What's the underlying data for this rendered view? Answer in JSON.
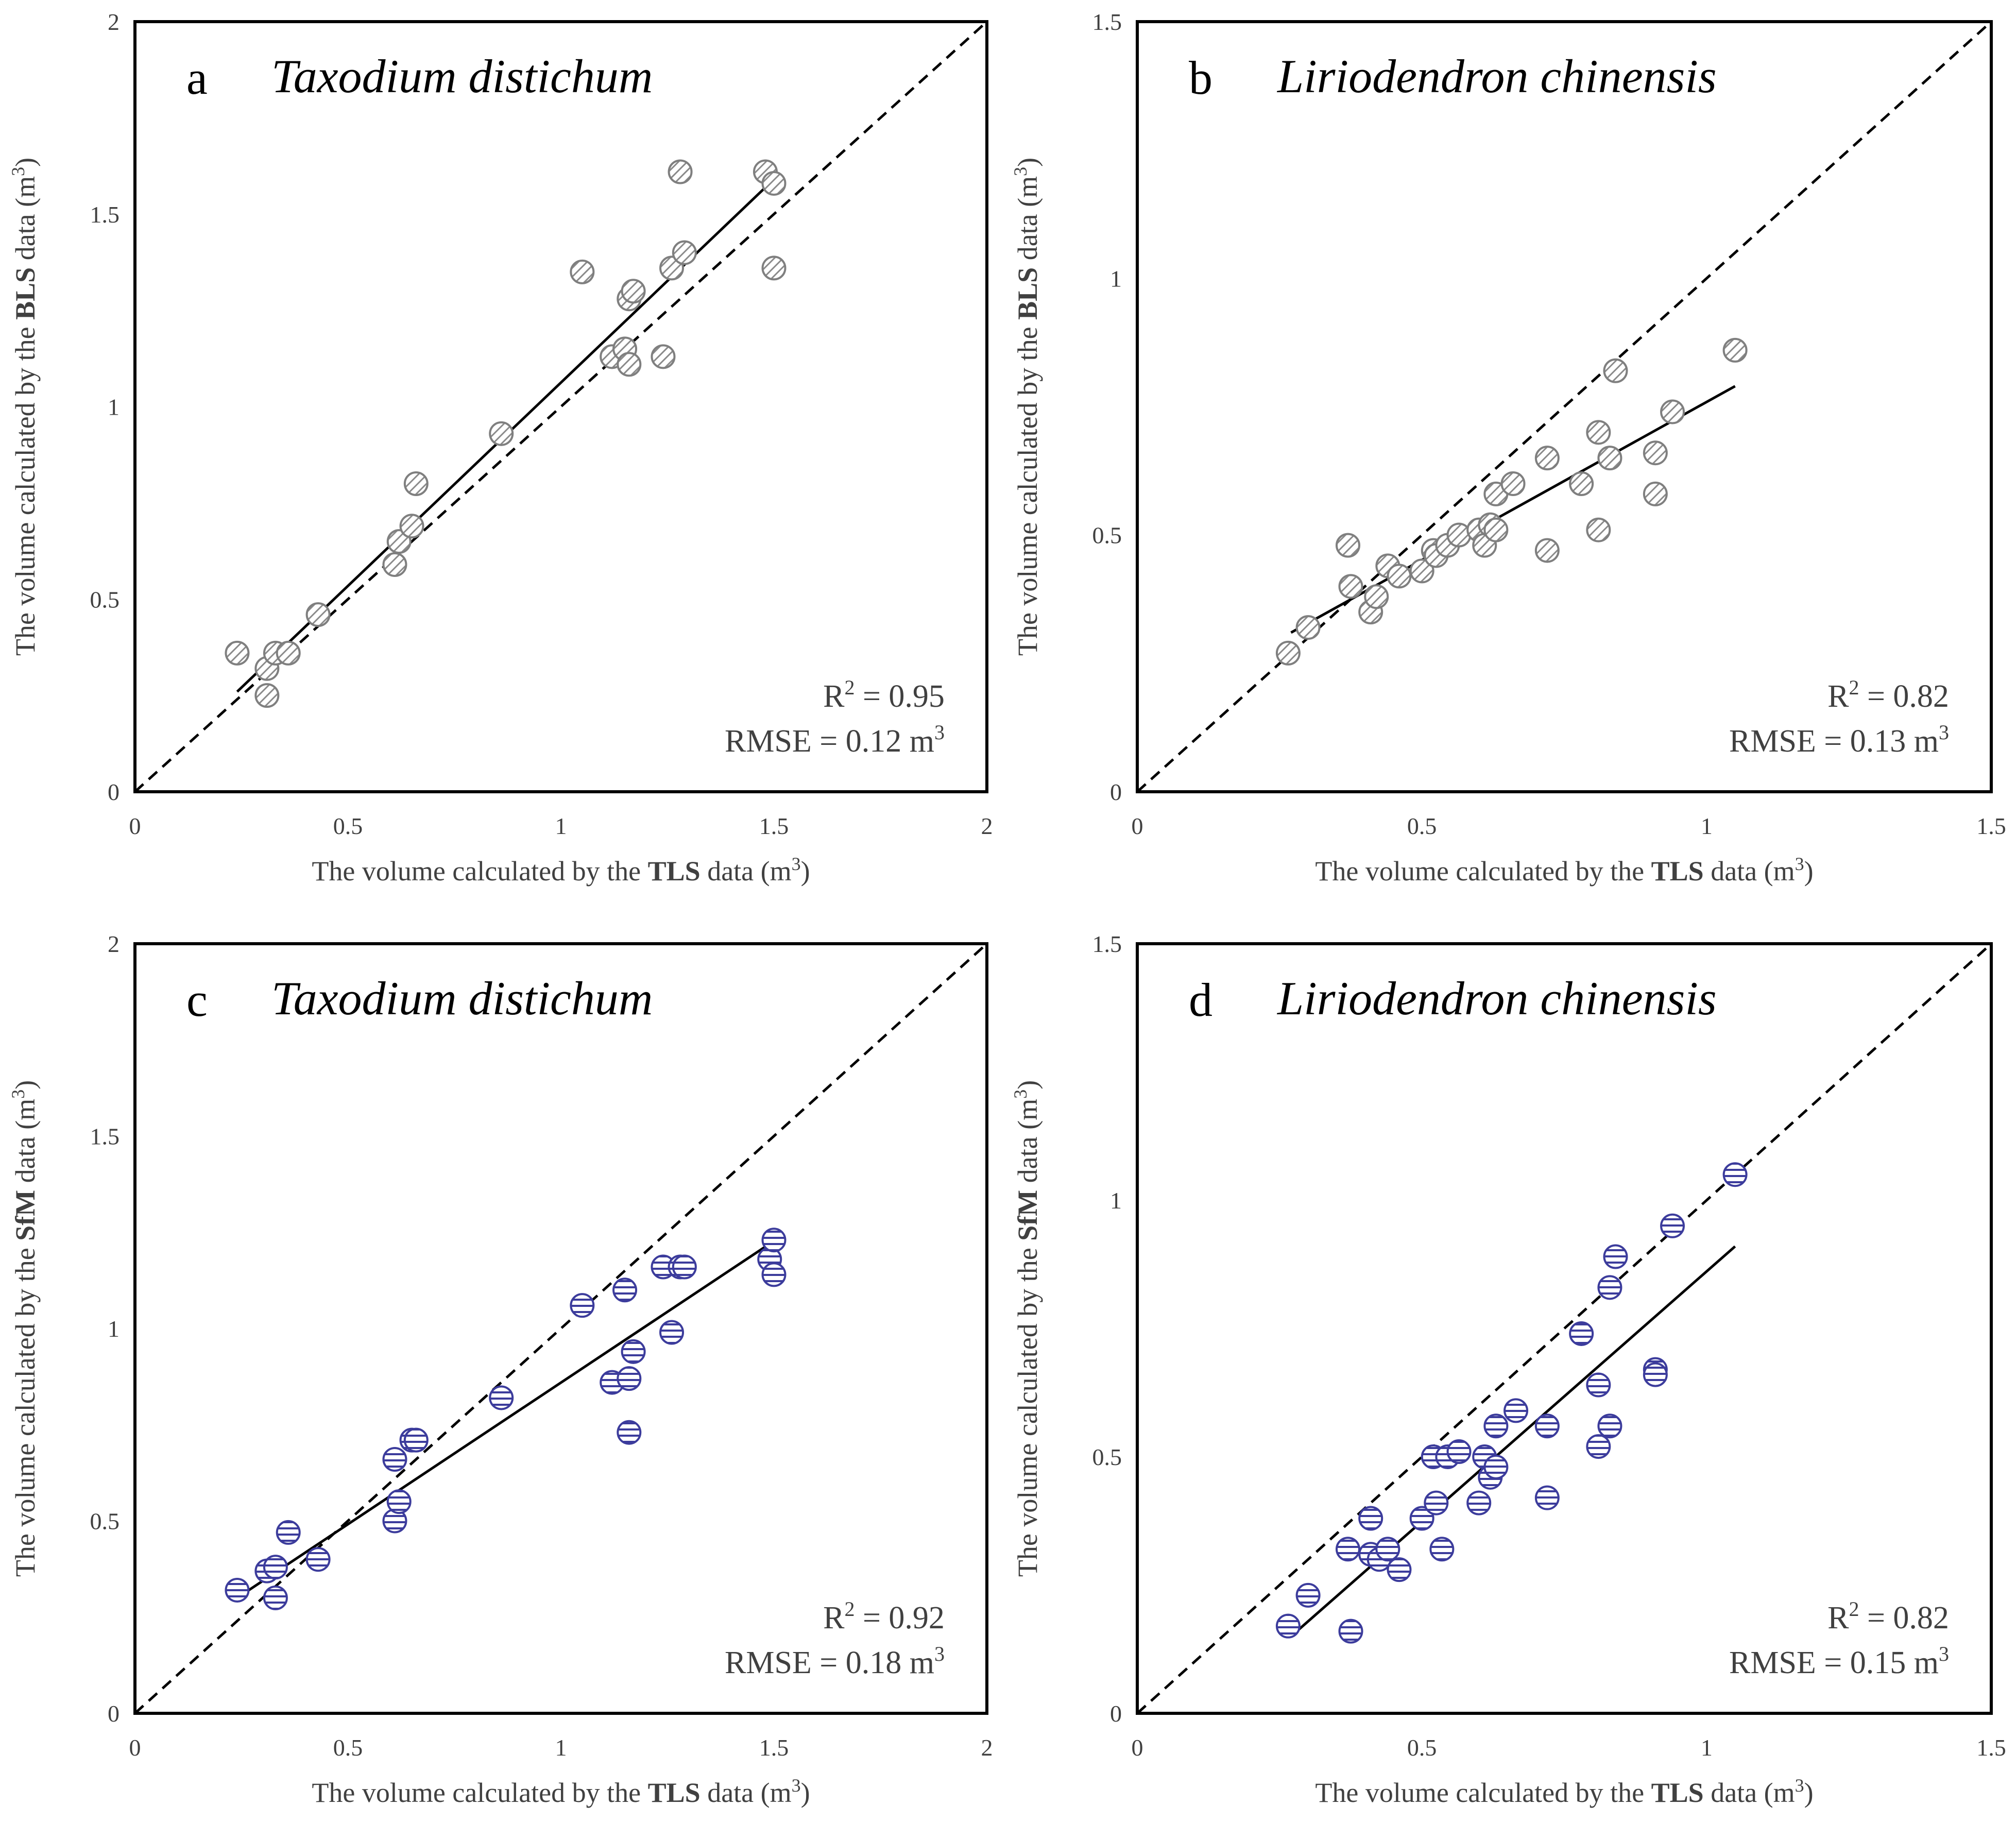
{
  "chart_data": [
    {
      "type": "scatter",
      "panel": "a",
      "species": "Taxodium distichum",
      "xlabel_pre": "The volume calculated by the ",
      "xlabel_bold": "TLS",
      "xlabel_post": " data (m",
      "xlabel_sup": "3",
      "xlabel_end": ")",
      "ylabel_pre": "The volume calculated by the ",
      "ylabel_bold": "BLS",
      "ylabel_post": " data (m",
      "ylabel_sup": "3",
      "ylabel_end": ")",
      "xlim": [
        0,
        2
      ],
      "ylim": [
        0,
        2
      ],
      "xticks": [
        "0",
        "0.5",
        "1",
        "1.5",
        "2"
      ],
      "yticks": [
        "0",
        "0.5",
        "1",
        "1.5",
        "2"
      ],
      "r2_label": "R",
      "r2_sup": "2",
      "r2_value": " = 0.95",
      "rmse_text": "RMSE = 0.12 m",
      "rmse_sup": "3",
      "fit_line": [
        [
          0.24,
          0.26
        ],
        [
          1.49,
          1.58
        ]
      ],
      "marker_color": "#7f7f7f",
      "points": [
        [
          0.24,
          0.36
        ],
        [
          0.31,
          0.32
        ],
        [
          0.31,
          0.25
        ],
        [
          0.33,
          0.36
        ],
        [
          0.36,
          0.36
        ],
        [
          0.43,
          0.46
        ],
        [
          0.61,
          0.59
        ],
        [
          0.62,
          0.65
        ],
        [
          0.65,
          0.69
        ],
        [
          0.66,
          0.8
        ],
        [
          0.86,
          0.93
        ],
        [
          1.05,
          1.35
        ],
        [
          1.12,
          1.13
        ],
        [
          1.15,
          1.15
        ],
        [
          1.16,
          1.11
        ],
        [
          1.16,
          1.28
        ],
        [
          1.17,
          1.3
        ],
        [
          1.24,
          1.13
        ],
        [
          1.26,
          1.36
        ],
        [
          1.28,
          1.61
        ],
        [
          1.29,
          1.4
        ],
        [
          1.48,
          1.61
        ],
        [
          1.5,
          1.58
        ],
        [
          1.5,
          1.36
        ]
      ]
    },
    {
      "type": "scatter",
      "panel": "b",
      "species": "Liriodendron chinensis",
      "xlabel_pre": "The volume calculated by the ",
      "xlabel_bold": "TLS",
      "xlabel_post": " data (m",
      "xlabel_sup": "3",
      "xlabel_end": ")",
      "ylabel_pre": "The volume calculated by the ",
      "ylabel_bold": "BLS",
      "ylabel_post": " data (m",
      "ylabel_sup": "3",
      "ylabel_end": ")",
      "xlim": [
        0,
        1.5
      ],
      "ylim": [
        0,
        1.5
      ],
      "xticks": [
        "0",
        "0.5",
        "1",
        "1.5"
      ],
      "yticks": [
        "0",
        "0.5",
        "1",
        "1.5"
      ],
      "r2_label": "R",
      "r2_sup": "2",
      "r2_value": " = 0.82",
      "rmse_text": "RMSE = 0.13 m",
      "rmse_sup": "3",
      "fit_line": [
        [
          0.27,
          0.31
        ],
        [
          1.05,
          0.79
        ]
      ],
      "marker_color": "#7f7f7f",
      "points": [
        [
          0.265,
          0.27
        ],
        [
          0.3,
          0.32
        ],
        [
          0.37,
          0.48
        ],
        [
          0.375,
          0.4
        ],
        [
          0.41,
          0.35
        ],
        [
          0.42,
          0.38
        ],
        [
          0.44,
          0.44
        ],
        [
          0.46,
          0.42
        ],
        [
          0.5,
          0.43
        ],
        [
          0.52,
          0.47
        ],
        [
          0.525,
          0.46
        ],
        [
          0.545,
          0.48
        ],
        [
          0.565,
          0.5
        ],
        [
          0.6,
          0.51
        ],
        [
          0.61,
          0.48
        ],
        [
          0.62,
          0.52
        ],
        [
          0.63,
          0.51
        ],
        [
          0.63,
          0.58
        ],
        [
          0.66,
          0.6
        ],
        [
          0.72,
          0.47
        ],
        [
          0.72,
          0.65
        ],
        [
          0.78,
          0.6
        ],
        [
          0.81,
          0.51
        ],
        [
          0.81,
          0.7
        ],
        [
          0.83,
          0.65
        ],
        [
          0.84,
          0.82
        ],
        [
          0.91,
          0.66
        ],
        [
          0.91,
          0.58
        ],
        [
          0.94,
          0.74
        ],
        [
          1.05,
          0.86
        ]
      ]
    },
    {
      "type": "scatter",
      "panel": "c",
      "species": "Taxodium distichum",
      "xlabel_pre": "The volume calculated by the ",
      "xlabel_bold": "TLS",
      "xlabel_post": " data (m",
      "xlabel_sup": "3",
      "xlabel_end": ")",
      "ylabel_pre": "The volume calculated by the ",
      "ylabel_bold": "SfM",
      "ylabel_post": " data (m",
      "ylabel_sup": "3",
      "ylabel_end": ")",
      "xlim": [
        0,
        2
      ],
      "ylim": [
        0,
        2
      ],
      "xticks": [
        "0",
        "0.5",
        "1",
        "1.5",
        "2"
      ],
      "yticks": [
        "0",
        "0.5",
        "1",
        "1.5",
        "2"
      ],
      "r2_label": "R",
      "r2_sup": "2",
      "r2_value": " = 0.92",
      "rmse_text": "RMSE = 0.18 m",
      "rmse_sup": "3",
      "fit_line": [
        [
          0.24,
          0.3
        ],
        [
          1.49,
          1.22
        ]
      ],
      "marker_color": "#3c3c9c",
      "points": [
        [
          0.24,
          0.32
        ],
        [
          0.31,
          0.37
        ],
        [
          0.33,
          0.3
        ],
        [
          0.33,
          0.38
        ],
        [
          0.36,
          0.47
        ],
        [
          0.43,
          0.4
        ],
        [
          0.61,
          0.5
        ],
        [
          0.62,
          0.55
        ],
        [
          0.61,
          0.66
        ],
        [
          0.65,
          0.71
        ],
        [
          0.66,
          0.71
        ],
        [
          0.86,
          0.82
        ],
        [
          1.05,
          1.06
        ],
        [
          1.12,
          0.86
        ],
        [
          1.15,
          1.1
        ],
        [
          1.16,
          0.87
        ],
        [
          1.16,
          0.73
        ],
        [
          1.17,
          0.94
        ],
        [
          1.24,
          1.16
        ],
        [
          1.26,
          0.99
        ],
        [
          1.28,
          1.16
        ],
        [
          1.29,
          1.16
        ],
        [
          1.49,
          1.18
        ],
        [
          1.5,
          1.23
        ],
        [
          1.5,
          1.14
        ]
      ]
    },
    {
      "type": "scatter",
      "panel": "d",
      "species": "Liriodendron chinensis",
      "xlabel_pre": "The volume calculated by the ",
      "xlabel_bold": "TLS",
      "xlabel_post": " data (m",
      "xlabel_sup": "3",
      "xlabel_end": ")",
      "ylabel_pre": "The volume calculated by the ",
      "ylabel_bold": "SfM",
      "ylabel_post": " data (m",
      "ylabel_sup": "3",
      "ylabel_end": ")",
      "xlim": [
        0,
        1.5
      ],
      "ylim": [
        0,
        1.5
      ],
      "xticks": [
        "0",
        "0.5",
        "1",
        "1.5"
      ],
      "yticks": [
        "0",
        "0.5",
        "1",
        "1.5"
      ],
      "r2_label": "R",
      "r2_sup": "2",
      "r2_value": " = 0.82",
      "rmse_text": "RMSE = 0.15 m",
      "rmse_sup": "3",
      "fit_line": [
        [
          0.27,
          0.15
        ],
        [
          1.05,
          0.91
        ]
      ],
      "marker_color": "#3c3c9c",
      "points": [
        [
          0.265,
          0.17
        ],
        [
          0.3,
          0.23
        ],
        [
          0.37,
          0.32
        ],
        [
          0.375,
          0.16
        ],
        [
          0.41,
          0.31
        ],
        [
          0.41,
          0.38
        ],
        [
          0.425,
          0.3
        ],
        [
          0.44,
          0.32
        ],
        [
          0.46,
          0.28
        ],
        [
          0.5,
          0.38
        ],
        [
          0.52,
          0.5
        ],
        [
          0.525,
          0.41
        ],
        [
          0.535,
          0.32
        ],
        [
          0.545,
          0.5
        ],
        [
          0.565,
          0.51
        ],
        [
          0.6,
          0.41
        ],
        [
          0.61,
          0.5
        ],
        [
          0.62,
          0.46
        ],
        [
          0.63,
          0.48
        ],
        [
          0.63,
          0.56
        ],
        [
          0.665,
          0.59
        ],
        [
          0.72,
          0.42
        ],
        [
          0.72,
          0.56
        ],
        [
          0.78,
          0.74
        ],
        [
          0.81,
          0.52
        ],
        [
          0.81,
          0.64
        ],
        [
          0.83,
          0.56
        ],
        [
          0.83,
          0.83
        ],
        [
          0.84,
          0.89
        ],
        [
          0.91,
          0.67
        ],
        [
          0.91,
          0.66
        ],
        [
          0.94,
          0.95
        ],
        [
          1.05,
          1.05
        ]
      ]
    }
  ]
}
